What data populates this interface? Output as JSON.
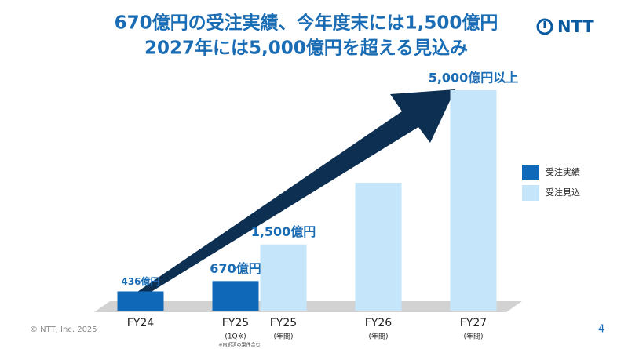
{
  "logo": "NTT",
  "footer": "© NTT, Inc.  2025",
  "page_number": "4",
  "footnote": "※内訳済の案件含む",
  "chart_data": {
    "type": "bar",
    "title": [
      "670億円の受注実績、今年度末には1,500億円",
      "2027年には5,000億円を超える見込み"
    ],
    "categories": [
      "FY24",
      "FY25",
      "FY25",
      "FY26",
      "FY27"
    ],
    "category_notes": [
      null,
      "(1Q※)",
      "(年間)",
      "(年間)",
      "(年間)"
    ],
    "ylim": [
      0,
      5000
    ],
    "series": [
      {
        "name": "受注実績",
        "color": "#1068b8",
        "values": [
          436,
          670,
          null,
          null,
          null
        ],
        "value_labels": [
          "436億円",
          "670億円",
          null,
          null,
          null
        ]
      },
      {
        "name": "受注見込",
        "color": "#c5e6fa",
        "values": [
          null,
          null,
          1500,
          2900,
          5000
        ],
        "value_labels": [
          null,
          null,
          "1,500億円",
          null,
          "5,000億円以上"
        ]
      }
    ],
    "legend": "right"
  }
}
